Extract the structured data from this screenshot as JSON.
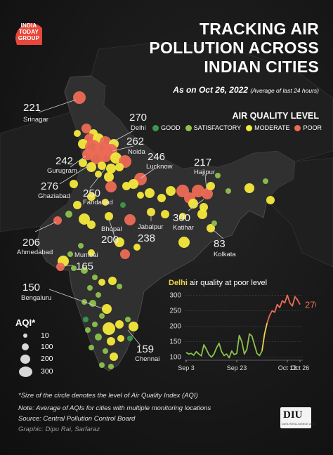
{
  "brand": {
    "logo_line1": "INDIA",
    "logo_line2": "TODAY",
    "logo_line3": "GROUP",
    "logo_color": "#e8473b"
  },
  "title": {
    "line1": "TRACKING AIR",
    "line2": "POLLUTION ACROSS",
    "line3": "INDIAN CITIES"
  },
  "as_of": {
    "date": "As on Oct 26, 2022",
    "note": "(Average of last 24 hours)"
  },
  "air_quality_legend": {
    "title": "AIR QUALITY LEVEL",
    "levels": [
      {
        "label": "GOOD",
        "color": "#3a9a4a"
      },
      {
        "label": "SATISFACTORY",
        "color": "#8dc24c"
      },
      {
        "label": "MODERATE",
        "color": "#f5e93c"
      },
      {
        "label": "POOR",
        "color": "#ec6b56"
      }
    ]
  },
  "city_labels": [
    {
      "name": "Srinagar",
      "aqi": "221"
    },
    {
      "name": "Delhi",
      "aqi": "270"
    },
    {
      "name": "Noida",
      "aqi": "262"
    },
    {
      "name": "Gurugram",
      "aqi": "242"
    },
    {
      "name": "Lucknow",
      "aqi": "246"
    },
    {
      "name": "Hajipur",
      "aqi": "217"
    },
    {
      "name": "Ghaziabad",
      "aqi": "276"
    },
    {
      "name": "Faridabad",
      "aqi": "250"
    },
    {
      "name": "Katihar",
      "aqi": "300"
    },
    {
      "name": "Bhopal",
      "aqi": "200"
    },
    {
      "name": "Jabalpur",
      "aqi": "238"
    },
    {
      "name": "Ahmedabad",
      "aqi": "206"
    },
    {
      "name": "Mumbai",
      "aqi": "165"
    },
    {
      "name": "Kolkata",
      "aqi": "83"
    },
    {
      "name": "Bengaluru",
      "aqi": "150"
    },
    {
      "name": "Chennai",
      "aqi": "159"
    }
  ],
  "aqi_size_legend": {
    "title": "AQI*",
    "sizes": [
      "10",
      "100",
      "200",
      "300"
    ]
  },
  "chart_data": {
    "type": "line",
    "title_city": "Delhi",
    "title_rest": "air quality at poor level",
    "x_tick_labels": [
      "Sep 3",
      "Sep 23",
      "Oct 13",
      "Oct 26"
    ],
    "y_ticks": [
      100,
      150,
      200,
      250,
      300
    ],
    "ylim": [
      90,
      310
    ],
    "end_label": "270",
    "values": [
      115,
      110,
      112,
      106,
      118,
      110,
      104,
      140,
      125,
      108,
      100,
      110,
      130,
      145,
      118,
      105,
      110,
      98,
      120,
      108,
      112,
      170,
      150,
      110,
      125,
      175,
      168,
      140,
      112,
      105,
      120,
      175,
      210,
      235,
      250,
      245,
      270,
      260,
      282,
      275,
      300,
      275,
      265,
      295,
      285,
      270
    ],
    "poor_from_index": 32,
    "line_colors": {
      "moderate": "#f0d44a",
      "satisfactory": "#8dc24c",
      "poor": "#ec6b56"
    }
  },
  "footnotes": {
    "size_note": "*Size of the circle denotes the level of Air Quality Index (AQI)",
    "avg_note": "Note: Average of AQIs for cities with multiple monitoring locations",
    "source": "Source: Central Pollution Control Board",
    "graphic": "Graphic: Dipu Rai, Sarfaraz"
  },
  "diu_badge": {
    "mark": "DIU",
    "tagline": "DATA INTELLIGENCE UNIT"
  }
}
